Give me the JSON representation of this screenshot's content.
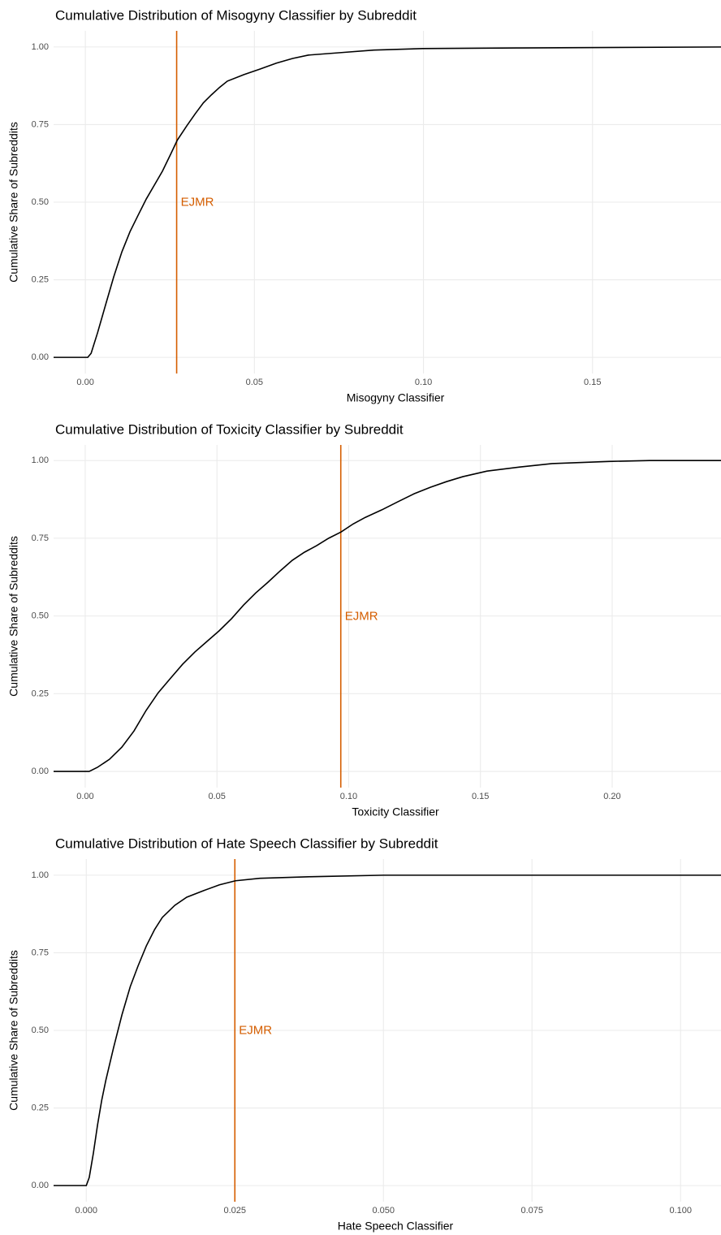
{
  "chart_data": [
    {
      "type": "line",
      "title": "Cumulative Distribution of Misogyny Classifier by Subreddit",
      "x_label": "Misogyny Classifier",
      "y_label": "Cumulative Share of Subreddits",
      "color": "#000000",
      "grid": true,
      "xlim": [
        -0.0094,
        0.188
      ],
      "ylim": [
        -0.052,
        1.052
      ],
      "xticks": [
        {
          "value": 0,
          "label": "0.00"
        },
        {
          "value": 0.05,
          "label": "0.05"
        },
        {
          "value": 0.1,
          "label": "0.10"
        },
        {
          "value": 0.15,
          "label": "0.15"
        }
      ],
      "yticks": [
        {
          "value": 0,
          "label": "0.00"
        },
        {
          "value": 0.25,
          "label": "0.25"
        },
        {
          "value": 0.5,
          "label": "0.50"
        },
        {
          "value": 0.75,
          "label": "0.75"
        },
        {
          "value": 1,
          "label": "1.00"
        }
      ],
      "annotation": {
        "x": 0.027,
        "text": "EJMR",
        "color": "#d55e00"
      },
      "x": [
        -0.0094,
        0.0007,
        0.0017,
        0.0036,
        0.006,
        0.0084,
        0.0108,
        0.0132,
        0.0156,
        0.018,
        0.0204,
        0.0228,
        0.0252,
        0.0272,
        0.03,
        0.0325,
        0.0349,
        0.0373,
        0.0397,
        0.042,
        0.0469,
        0.0517,
        0.0565,
        0.0613,
        0.066,
        0.0757,
        0.0853,
        0.0998,
        0.1286,
        0.188
      ],
      "values": [
        0,
        0,
        0.013,
        0.079,
        0.17,
        0.26,
        0.34,
        0.405,
        0.458,
        0.51,
        0.555,
        0.6,
        0.654,
        0.7,
        0.746,
        0.785,
        0.82,
        0.846,
        0.87,
        0.89,
        0.911,
        0.929,
        0.948,
        0.963,
        0.974,
        0.982,
        0.99,
        0.995,
        0.997,
        1
      ]
    },
    {
      "type": "line",
      "title": "Cumulative Distribution of Toxicity Classifier by Subreddit",
      "x_label": "Toxicity Classifier",
      "y_label": "Cumulative Share of Subreddits",
      "color": "#000000",
      "grid": true,
      "xlim": [
        -0.012,
        0.2413
      ],
      "ylim": [
        -0.052,
        1.05
      ],
      "xticks": [
        {
          "value": 0,
          "label": "0.00"
        },
        {
          "value": 0.05,
          "label": "0.05"
        },
        {
          "value": 0.1,
          "label": "0.10"
        },
        {
          "value": 0.15,
          "label": "0.15"
        },
        {
          "value": 0.2,
          "label": "0.20"
        }
      ],
      "yticks": [
        {
          "value": 0,
          "label": "0.00"
        },
        {
          "value": 0.25,
          "label": "0.25"
        },
        {
          "value": 0.5,
          "label": "0.50"
        },
        {
          "value": 0.75,
          "label": "0.75"
        },
        {
          "value": 1,
          "label": "1.00"
        }
      ],
      "annotation": {
        "x": 0.097,
        "text": "EJMR",
        "color": "#d55e00"
      },
      "x": [
        -0.012,
        0.0015,
        0.0046,
        0.0092,
        0.0139,
        0.0185,
        0.0231,
        0.0277,
        0.0324,
        0.037,
        0.0416,
        0.0462,
        0.0508,
        0.0555,
        0.0601,
        0.0647,
        0.0693,
        0.074,
        0.0786,
        0.0832,
        0.0878,
        0.0924,
        0.0971,
        0.1017,
        0.1063,
        0.1125,
        0.1186,
        0.1248,
        0.131,
        0.1371,
        0.1433,
        0.1525,
        0.1649,
        0.1772,
        0.1988,
        0.2142,
        0.2413
      ],
      "values": [
        0,
        0,
        0.013,
        0.039,
        0.078,
        0.13,
        0.196,
        0.253,
        0.3,
        0.345,
        0.384,
        0.418,
        0.452,
        0.491,
        0.535,
        0.574,
        0.608,
        0.645,
        0.679,
        0.705,
        0.726,
        0.75,
        0.77,
        0.796,
        0.817,
        0.841,
        0.867,
        0.893,
        0.914,
        0.932,
        0.948,
        0.966,
        0.979,
        0.99,
        0.997,
        1,
        1
      ]
    },
    {
      "type": "line",
      "title": "Cumulative Distribution of Hate Speech Classifier by Subreddit",
      "x_label": "Hate Speech Classifier",
      "y_label": "Cumulative Share of Subreddits",
      "color": "#000000",
      "grid": true,
      "xlim": [
        -0.0055,
        0.1068
      ],
      "ylim": [
        -0.052,
        1.052
      ],
      "xticks": [
        {
          "value": 0,
          "label": "0.000"
        },
        {
          "value": 0.025,
          "label": "0.025"
        },
        {
          "value": 0.05,
          "label": "0.050"
        },
        {
          "value": 0.075,
          "label": "0.075"
        },
        {
          "value": 0.1,
          "label": "0.100"
        }
      ],
      "yticks": [
        {
          "value": 0,
          "label": "0.00"
        },
        {
          "value": 0.25,
          "label": "0.25"
        },
        {
          "value": 0.5,
          "label": "0.50"
        },
        {
          "value": 0.75,
          "label": "0.75"
        },
        {
          "value": 1,
          "label": "1.00"
        }
      ],
      "annotation": {
        "x": 0.025,
        "text": "EJMR",
        "color": "#d55e00"
      },
      "x": [
        -0.0055,
        0,
        0.0005,
        0.0012,
        0.0019,
        0.0026,
        0.0033,
        0.0046,
        0.006,
        0.0074,
        0.0087,
        0.0101,
        0.0115,
        0.0128,
        0.0149,
        0.0169,
        0.0197,
        0.0224,
        0.0251,
        0.0292,
        0.0374,
        0.05,
        0.1068
      ],
      "values": [
        0,
        0,
        0.026,
        0.105,
        0.196,
        0.275,
        0.34,
        0.445,
        0.55,
        0.641,
        0.707,
        0.772,
        0.825,
        0.864,
        0.903,
        0.929,
        0.95,
        0.969,
        0.982,
        0.99,
        0.995,
        1,
        1
      ]
    }
  ]
}
